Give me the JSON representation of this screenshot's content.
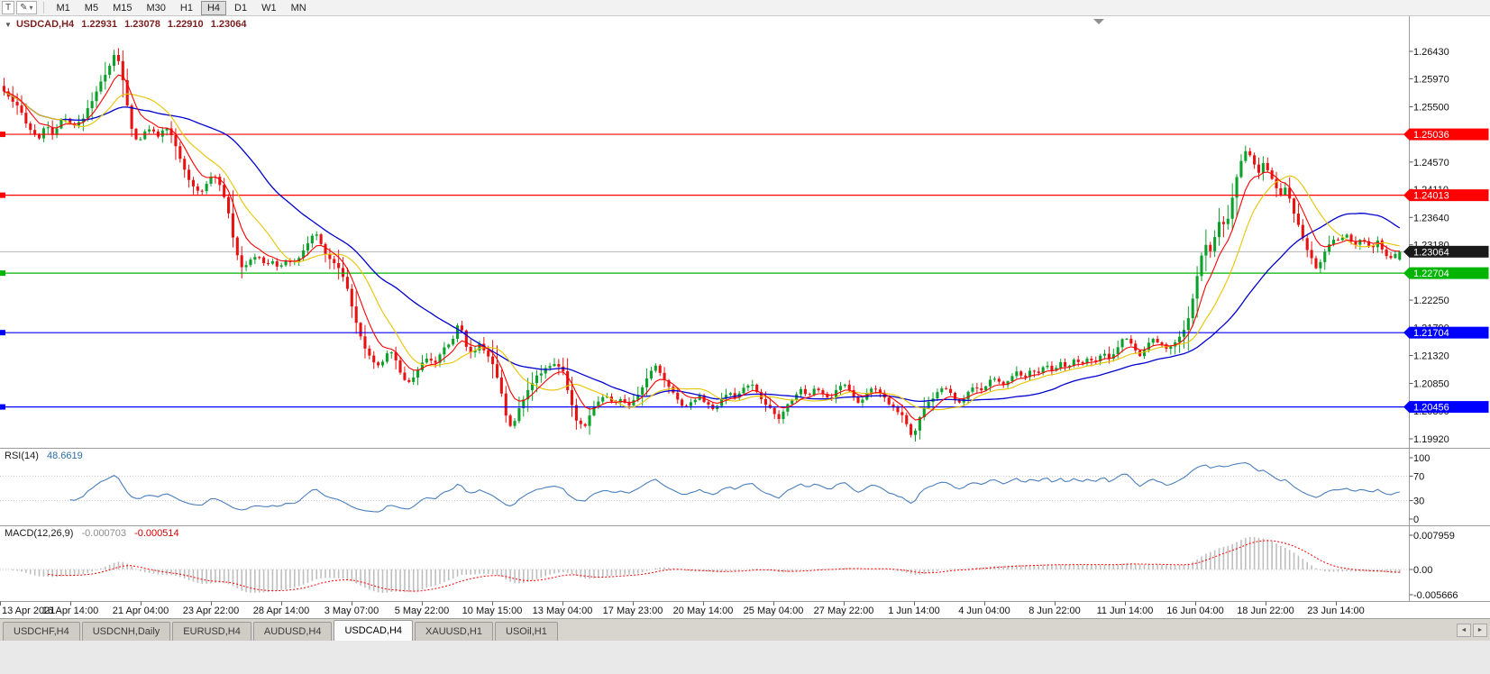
{
  "toolbar": {
    "cursor_button": "T",
    "draw_icon": "✎",
    "draw_dropdown_icon": "▾",
    "timeframes": [
      "M1",
      "M5",
      "M15",
      "M30",
      "H1",
      "H4",
      "D1",
      "W1",
      "MN"
    ],
    "active_timeframe": "H4"
  },
  "chart_header": {
    "collapse_icon": "▼",
    "symbol_timeframe": "USDCAD,H4",
    "open": "1.22931",
    "high": "1.23078",
    "low": "1.22910",
    "close": "1.23064"
  },
  "indicators": {
    "rsi_name": "RSI(14)",
    "rsi_value": "48.6619",
    "rsi_axis": [
      "100",
      "70",
      "30",
      "0"
    ],
    "macd_name": "MACD(12,26,9)",
    "macd_main_value": "-0.000703",
    "macd_signal_value": "-0.000514",
    "macd_axis": [
      "0.007959",
      "0.00",
      "-0.005666"
    ]
  },
  "price_axis": {
    "ticks": [
      "1.26430",
      "1.25970",
      "1.25500",
      "1.25030",
      "1.24570",
      "1.24110",
      "1.23640",
      "1.23180",
      "1.22720",
      "1.22250",
      "1.21790",
      "1.21320",
      "1.20850",
      "1.20390",
      "1.19920"
    ],
    "current_price": "1.23064",
    "current_value": 1.23064,
    "levels": [
      {
        "price": "1.25036",
        "value": 1.25036,
        "color": "#FF0000"
      },
      {
        "price": "1.24013",
        "value": 1.24013,
        "color": "#FF0000"
      },
      {
        "price": "1.22704",
        "value": 1.22704,
        "color": "#00B400"
      },
      {
        "price": "1.21704",
        "value": 1.21704,
        "color": "#0000FF"
      },
      {
        "price": "1.20456",
        "value": 1.20456,
        "color": "#0000FF"
      }
    ]
  },
  "x_axis": {
    "labels": [
      "13 Apr 2021",
      "16 Apr 14:00",
      "21 Apr 04:00",
      "23 Apr 22:00",
      "28 Apr 14:00",
      "3 May 07:00",
      "5 May 22:00",
      "10 May 15:00",
      "13 May 04:00",
      "17 May 23:00",
      "20 May 14:00",
      "25 May 04:00",
      "27 May 22:00",
      "1 Jun 14:00",
      "4 Jun 04:00",
      "8 Jun 22:00",
      "11 Jun 14:00",
      "16 Jun 04:00",
      "18 Jun 22:00",
      "23 Jun 14:00"
    ]
  },
  "tabs": {
    "labels": [
      "USDCHF,H4",
      "USDCNH,Daily",
      "EURUSD,H4",
      "AUDUSD,H4",
      "USDCAD,H4",
      "XAUUSD,H1",
      "USOil,H1"
    ],
    "active": "USDCAD,H4",
    "prev_icon": "◄",
    "next_icon": "►"
  },
  "chart_data": {
    "type": "candlestick",
    "symbol": "USDCAD",
    "timeframe": "H4",
    "visible_range": {
      "start": "13 Apr 2021",
      "end": "24 Jun 2021"
    },
    "y_axis": {
      "top_tick": 1.2643,
      "bottom_tick": 1.1992
    },
    "bar_count": 318,
    "colors": {
      "up": "#0BA12B",
      "down": "#E81212"
    },
    "last_candle": {
      "o": 1.22931,
      "h": 1.23078,
      "l": 1.2291,
      "c": 1.23064
    },
    "ma": {
      "fast_period": 7,
      "fast_color": "#FF0000",
      "mid_period": 14,
      "mid_color": "#E8C400",
      "slow_period": 34,
      "slow_color": "#0000D0"
    },
    "rsi": {
      "period": 14,
      "color": "#4A7EBB",
      "levels": [
        70,
        30
      ]
    },
    "macd": {
      "fast": 12,
      "slow": 26,
      "signal": 9,
      "hist_color": "#BEBEBE",
      "signal_color": "#FF0000"
    },
    "price_path": [
      [
        0,
        1.2585
      ],
      [
        12,
        1.256
      ],
      [
        22,
        1.2545
      ],
      [
        32,
        1.2515
      ],
      [
        42,
        1.2495
      ],
      [
        52,
        1.252
      ],
      [
        60,
        1.25
      ],
      [
        70,
        1.2535
      ],
      [
        80,
        1.2515
      ],
      [
        90,
        1.2525
      ],
      [
        100,
        1.2555
      ],
      [
        110,
        1.2585
      ],
      [
        120,
        1.2615
      ],
      [
        128,
        1.264
      ],
      [
        134,
        1.2615
      ],
      [
        140,
        1.256
      ],
      [
        146,
        1.2515
      ],
      [
        152,
        1.249
      ],
      [
        160,
        1.2505
      ],
      [
        168,
        1.2515
      ],
      [
        176,
        1.25
      ],
      [
        184,
        1.2515
      ],
      [
        192,
        1.2495
      ],
      [
        198,
        1.247
      ],
      [
        206,
        1.2438
      ],
      [
        214,
        1.2418
      ],
      [
        222,
        1.2405
      ],
      [
        230,
        1.2425
      ],
      [
        238,
        1.2435
      ],
      [
        246,
        1.2412
      ],
      [
        252,
        1.2385
      ],
      [
        258,
        1.2335
      ],
      [
        264,
        1.2298
      ],
      [
        270,
        1.2275
      ],
      [
        278,
        1.2292
      ],
      [
        286,
        1.2302
      ],
      [
        294,
        1.2282
      ],
      [
        302,
        1.2292
      ],
      [
        310,
        1.2276
      ],
      [
        318,
        1.2295
      ],
      [
        326,
        1.2286
      ],
      [
        334,
        1.2302
      ],
      [
        342,
        1.2322
      ],
      [
        350,
        1.234
      ],
      [
        358,
        1.2312
      ],
      [
        366,
        1.2294
      ],
      [
        374,
        1.2284
      ],
      [
        382,
        1.2262
      ],
      [
        390,
        1.2218
      ],
      [
        396,
        1.218
      ],
      [
        404,
        1.2148
      ],
      [
        412,
        1.2128
      ],
      [
        420,
        1.2112
      ],
      [
        428,
        1.2132
      ],
      [
        436,
        1.214
      ],
      [
        444,
        1.2102
      ],
      [
        452,
        1.2086
      ],
      [
        460,
        1.2098
      ],
      [
        468,
        1.2118
      ],
      [
        476,
        1.2128
      ],
      [
        484,
        1.212
      ],
      [
        492,
        1.2142
      ],
      [
        500,
        1.2152
      ],
      [
        506,
        1.2172
      ],
      [
        510,
        1.2196
      ],
      [
        516,
        1.2148
      ],
      [
        524,
        1.2136
      ],
      [
        532,
        1.215
      ],
      [
        540,
        1.2138
      ],
      [
        548,
        1.2112
      ],
      [
        556,
        1.2072
      ],
      [
        562,
        1.2028
      ],
      [
        568,
        1.2006
      ],
      [
        576,
        1.2044
      ],
      [
        584,
        1.2072
      ],
      [
        592,
        1.209
      ],
      [
        600,
        1.2104
      ],
      [
        608,
        1.2114
      ],
      [
        616,
        1.212
      ],
      [
        624,
        1.2108
      ],
      [
        632,
        1.2058
      ],
      [
        640,
        1.2022
      ],
      [
        648,
        1.2012
      ],
      [
        656,
        1.204
      ],
      [
        664,
        1.2056
      ],
      [
        672,
        1.2066
      ],
      [
        680,
        1.205
      ],
      [
        688,
        1.206
      ],
      [
        696,
        1.2046
      ],
      [
        704,
        1.2056
      ],
      [
        712,
        1.2076
      ],
      [
        720,
        1.2102
      ],
      [
        728,
        1.2114
      ],
      [
        736,
        1.2094
      ],
      [
        744,
        1.2074
      ],
      [
        752,
        1.2058
      ],
      [
        760,
        1.2044
      ],
      [
        768,
        1.2056
      ],
      [
        776,
        1.2066
      ],
      [
        784,
        1.205
      ],
      [
        792,
        1.204
      ],
      [
        800,
        1.2056
      ],
      [
        808,
        1.207
      ],
      [
        816,
        1.206
      ],
      [
        824,
        1.2076
      ],
      [
        832,
        1.2086
      ],
      [
        840,
        1.207
      ],
      [
        848,
        1.2054
      ],
      [
        856,
        1.2038
      ],
      [
        864,
        1.2024
      ],
      [
        872,
        1.2046
      ],
      [
        880,
        1.2062
      ],
      [
        888,
        1.2076
      ],
      [
        896,
        1.2064
      ],
      [
        904,
        1.208
      ],
      [
        912,
        1.2068
      ],
      [
        920,
        1.2058
      ],
      [
        928,
        1.2074
      ],
      [
        936,
        1.2086
      ],
      [
        944,
        1.207
      ],
      [
        952,
        1.2054
      ],
      [
        960,
        1.2064
      ],
      [
        968,
        1.208
      ],
      [
        976,
        1.2068
      ],
      [
        984,
        1.2054
      ],
      [
        992,
        1.2044
      ],
      [
        1000,
        1.2034
      ],
      [
        1006,
        1.2014
      ],
      [
        1012,
        1.1996
      ],
      [
        1018,
        1.2016
      ],
      [
        1024,
        1.204
      ],
      [
        1032,
        1.2056
      ],
      [
        1040,
        1.207
      ],
      [
        1048,
        1.208
      ],
      [
        1056,
        1.2064
      ],
      [
        1064,
        1.205
      ],
      [
        1072,
        1.2066
      ],
      [
        1080,
        1.208
      ],
      [
        1088,
        1.207
      ],
      [
        1096,
        1.2086
      ],
      [
        1104,
        1.2096
      ],
      [
        1112,
        1.208
      ],
      [
        1120,
        1.209
      ],
      [
        1128,
        1.2106
      ],
      [
        1136,
        1.2094
      ],
      [
        1144,
        1.211
      ],
      [
        1152,
        1.21
      ],
      [
        1160,
        1.2116
      ],
      [
        1168,
        1.2104
      ],
      [
        1176,
        1.212
      ],
      [
        1184,
        1.211
      ],
      [
        1192,
        1.2126
      ],
      [
        1200,
        1.2114
      ],
      [
        1208,
        1.213
      ],
      [
        1216,
        1.212
      ],
      [
        1224,
        1.2136
      ],
      [
        1232,
        1.2124
      ],
      [
        1240,
        1.2146
      ],
      [
        1248,
        1.2166
      ],
      [
        1256,
        1.215
      ],
      [
        1264,
        1.2132
      ],
      [
        1272,
        1.2146
      ],
      [
        1280,
        1.2162
      ],
      [
        1288,
        1.215
      ],
      [
        1296,
        1.214
      ],
      [
        1304,
        1.2156
      ],
      [
        1312,
        1.2172
      ],
      [
        1318,
        1.2192
      ],
      [
        1324,
        1.2232
      ],
      [
        1330,
        1.2282
      ],
      [
        1336,
        1.2322
      ],
      [
        1342,
        1.2302
      ],
      [
        1348,
        1.2332
      ],
      [
        1354,
        1.2362
      ],
      [
        1360,
        1.2342
      ],
      [
        1366,
        1.2392
      ],
      [
        1372,
        1.2432
      ],
      [
        1378,
        1.2462
      ],
      [
        1384,
        1.248
      ],
      [
        1390,
        1.2456
      ],
      [
        1396,
        1.244
      ],
      [
        1402,
        1.2456
      ],
      [
        1408,
        1.244
      ],
      [
        1414,
        1.242
      ],
      [
        1420,
        1.24
      ],
      [
        1426,
        1.2416
      ],
      [
        1432,
        1.239
      ],
      [
        1438,
        1.236
      ],
      [
        1444,
        1.2338
      ],
      [
        1450,
        1.231
      ],
      [
        1456,
        1.229
      ],
      [
        1462,
        1.2276
      ],
      [
        1468,
        1.23
      ],
      [
        1474,
        1.232
      ],
      [
        1480,
        1.233
      ],
      [
        1486,
        1.2322
      ],
      [
        1492,
        1.2336
      ],
      [
        1498,
        1.2326
      ],
      [
        1504,
        1.2316
      ],
      [
        1510,
        1.233
      ],
      [
        1516,
        1.232
      ],
      [
        1522,
        1.231
      ],
      [
        1528,
        1.2324
      ],
      [
        1534,
        1.231
      ],
      [
        1540,
        1.2296
      ],
      [
        1546,
        1.23
      ],
      [
        1552,
        1.2306
      ]
    ]
  }
}
